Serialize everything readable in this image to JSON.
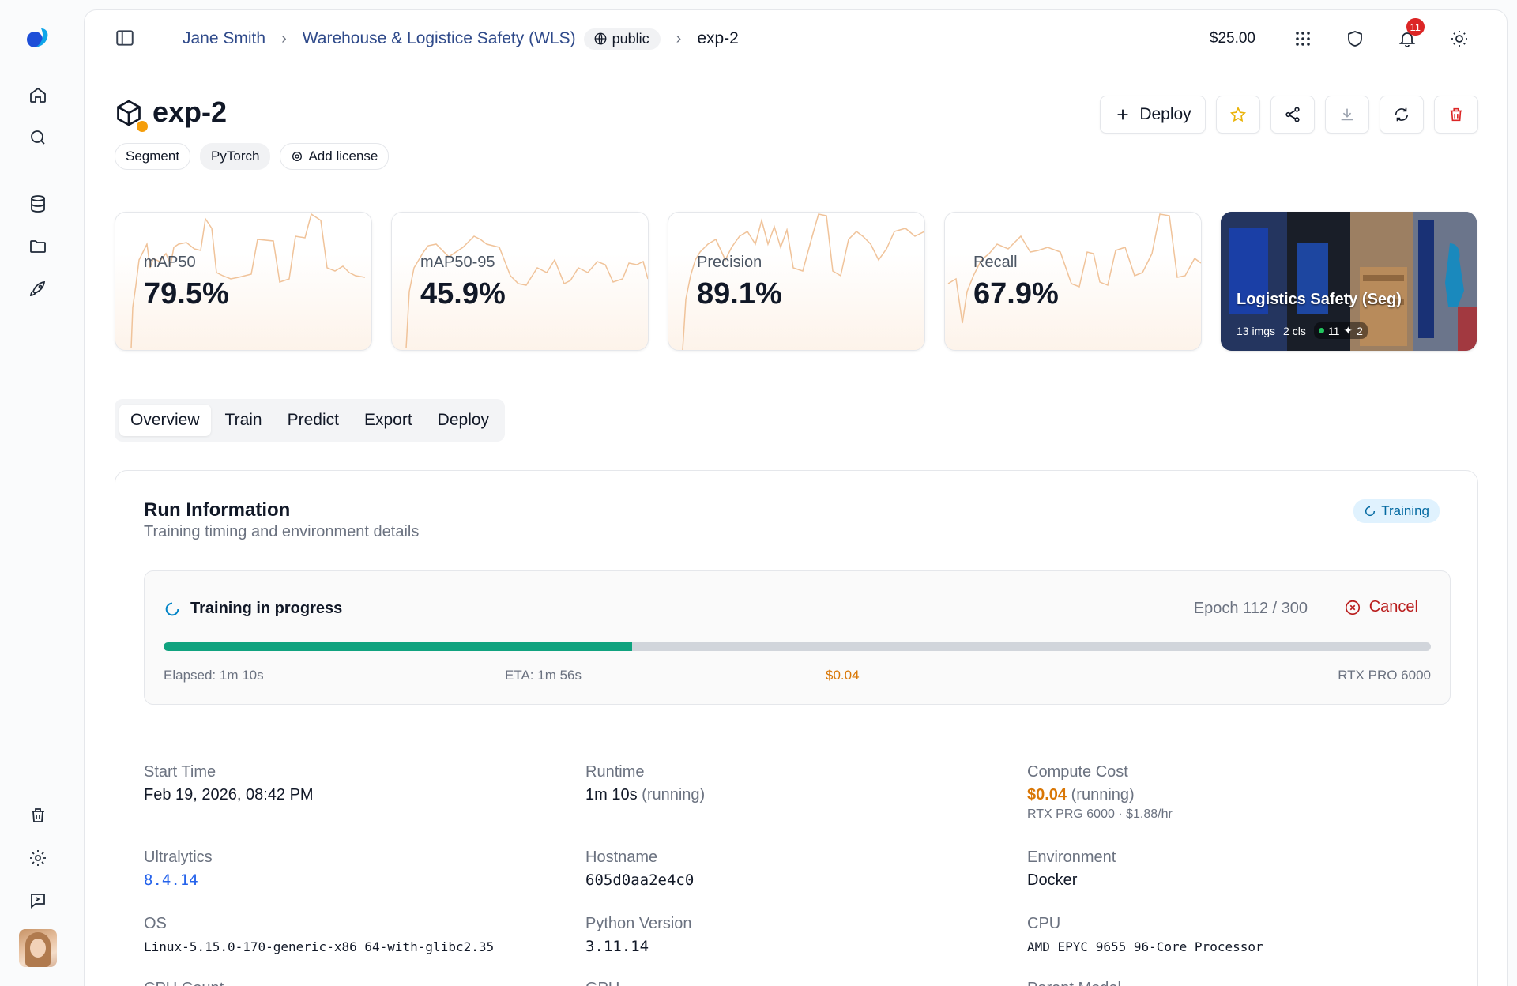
{
  "topbar": {
    "breadcrumb": {
      "user": "Jane Smith",
      "project": "Warehouse & Logistice Safety (WLS)",
      "visibility": "public",
      "current": "exp-2"
    },
    "balance": "$25.00",
    "notification_count": "11"
  },
  "header": {
    "title": "exp-2",
    "tags": [
      "Segment",
      "PyTorch"
    ],
    "add_license": "Add license",
    "deploy_label": "Deploy"
  },
  "metrics": [
    {
      "label": "mAP50",
      "value": "79.5%"
    },
    {
      "label": "mAP50-95",
      "value": "45.9%"
    },
    {
      "label": "Precision",
      "value": "89.1%"
    },
    {
      "label": "Recall",
      "value": "67.9%"
    }
  ],
  "dataset": {
    "name": "Logistics Safety (Seg)",
    "images": "13 imgs",
    "classes": "2 cls",
    "count_a": "11",
    "count_b": "2"
  },
  "tabs": [
    "Overview",
    "Train",
    "Predict",
    "Export",
    "Deploy"
  ],
  "run": {
    "title": "Run Information",
    "subtitle": "Training timing and environment details",
    "status": "Training",
    "progress": {
      "title": "Training in progress",
      "epoch": "Epoch 112 / 300",
      "fraction": 0.37,
      "cancel": "Cancel",
      "elapsed": "Elapsed: 1m 10s",
      "eta": "ETA: 1m 56s",
      "cost": "$0.04",
      "gpu": "RTX PRO 6000"
    },
    "fields": {
      "start_time": {
        "label": "Start Time",
        "value": "Feb 19, 2026, 08:42 PM"
      },
      "runtime": {
        "label": "Runtime",
        "value": "1m 10s",
        "suffix": "(running)"
      },
      "compute_cost": {
        "label": "Compute Cost",
        "value": "$0.04",
        "suffix": "(running)",
        "note": "RTX PRG 6000 · $1.88/hr"
      },
      "ultralytics": {
        "label": "Ultralytics",
        "value": "8.4.14"
      },
      "hostname": {
        "label": "Hostname",
        "value": "605d0aa2e4c0"
      },
      "environment": {
        "label": "Environment",
        "value": "Docker"
      },
      "os": {
        "label": "OS",
        "value": "Linux-5.15.0-170-generic-x86_64-with-glibc2.35"
      },
      "python": {
        "label": "Python Version",
        "value": "3.11.14"
      },
      "cpu": {
        "label": "CPU",
        "value": "AMD EPYC 9655 96-Core Processor"
      },
      "cpu_count": {
        "label": "CPU Count"
      },
      "gpu": {
        "label": "GPU"
      },
      "parent_model": {
        "label": "Parent Model"
      }
    }
  },
  "colors": {
    "accent": "#2f4a8a",
    "progress": "#10a37f",
    "cost": "#d97706",
    "danger": "#b91c1c",
    "status_bg": "#e0f2fe"
  }
}
